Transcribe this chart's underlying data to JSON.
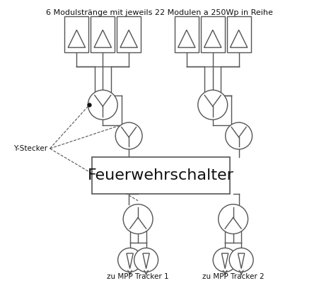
{
  "title": "6 Modulstränge mit jeweils 22 Modulen a 250Wp in Reihe",
  "fws_label": "Feuerwehrschalter",
  "y_stecker_label": "Y-Stecker",
  "mpp1_label": "zu MPP Tracker 1",
  "mpp2_label": "zu MPP Tracker 2",
  "bg_color": "#ffffff",
  "line_color": "#555555",
  "title_fontsize": 8.0,
  "label_fontsize": 7.5,
  "fws_fontsize": 16
}
